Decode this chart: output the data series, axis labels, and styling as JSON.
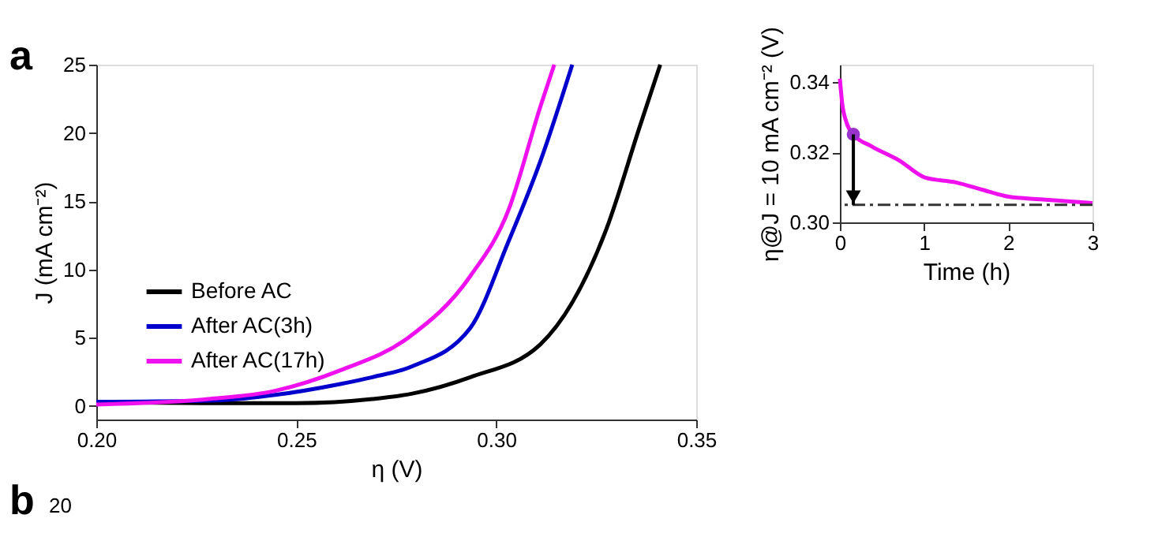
{
  "chart_data": [
    {
      "type": "line",
      "xlabel": "η (V)",
      "ylabel": "J (mA cm⁻²)",
      "xlim": [
        0.2,
        0.35
      ],
      "xticks": [
        {
          "value": 0.2,
          "label": "0.20"
        },
        {
          "value": 0.25,
          "label": "0.25"
        },
        {
          "value": 0.3,
          "label": "0.30"
        },
        {
          "value": 0.35,
          "label": "0.35"
        }
      ],
      "ylim": [
        -1,
        25
      ],
      "yticks": [
        0,
        5,
        10,
        15,
        20,
        25
      ],
      "grid": false,
      "legend": "bottom left",
      "line_style": "solid",
      "marker": "none",
      "annotations": [
        "a",
        "b",
        "20"
      ],
      "series": [
        {
          "name": "Before AC",
          "color": "#000000",
          "x": [
            0.2,
            0.23,
            0.25,
            0.269,
            0.279,
            0.2935,
            0.311,
            0.3276,
            0.3357,
            0.341
          ],
          "values": [
            0.3,
            0.2,
            0.2,
            0.5,
            0.9,
            2.1,
            4.5,
            13,
            20.3,
            25
          ]
        },
        {
          "name": "After AC(3h)",
          "color": "#0000cc",
          "x": [
            0.2,
            0.23,
            0.2447,
            0.261,
            0.269,
            0.279,
            0.2935,
            0.303,
            0.311,
            0.319
          ],
          "values": [
            0.3,
            0.4,
            0.8,
            1.6,
            2.1,
            2.9,
            5.7,
            12,
            17.9,
            25
          ]
        },
        {
          "name": "After AC(17h)",
          "color": "#ee11ee",
          "x": [
            0.2,
            0.228,
            0.2447,
            0.261,
            0.278,
            0.2935,
            0.303,
            0.311,
            0.3145
          ],
          "values": [
            0.1,
            0.5,
            1.1,
            2.6,
            5,
            9.5,
            14.3,
            21.9,
            25
          ]
        }
      ]
    },
    {
      "type": "line",
      "xlabel": "Time (h)",
      "ylabel": "η@J = 10 mA cm⁻² (V)",
      "xlim": [
        0,
        3
      ],
      "xticks": [
        0,
        1,
        2,
        3
      ],
      "ylim": [
        0.3,
        0.345
      ],
      "yticks": [
        {
          "value": 0.3,
          "label": "0.30"
        },
        0.32,
        0.34
      ],
      "grid": false,
      "legend": false,
      "line_style": "solid",
      "marker": "none",
      "ref_lines": [
        {
          "axis": "y",
          "value": 0.305,
          "color": "#333333",
          "line_style": "dashdot"
        }
      ],
      "series": [
        {
          "color": "#ee11ee",
          "x": [
            0,
            0.027,
            0.077,
            0.16,
            0.377,
            0.71,
            1.01,
            1.38,
            1.68,
            2.01,
            2.38,
            3
          ],
          "values": [
            0.341,
            0.334,
            0.3286,
            0.3251,
            0.3217,
            0.3176,
            0.3128,
            0.3114,
            0.3094,
            0.3073,
            0.3066,
            0.3055
          ]
        },
        {
          "type": "scatter",
          "color": "#9933cc",
          "x": [
            0.16
          ],
          "values": [
            0.3251
          ],
          "marker": "circle"
        }
      ]
    }
  ]
}
